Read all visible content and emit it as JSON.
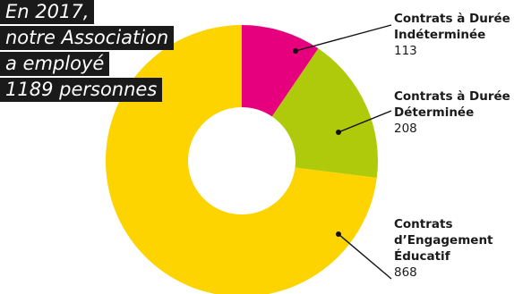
{
  "title_lines": [
    "En 2017,",
    "notre Association",
    "a employé",
    "1189 personnes"
  ],
  "chart_data": {
    "type": "pie",
    "donut": true,
    "slices": [
      {
        "label_lines": [
          "Contrats à Durée",
          "Indéterminée"
        ],
        "value": 113,
        "value_label": "113",
        "color": "#e6007e"
      },
      {
        "label_lines": [
          "Contrats à Durée",
          "Déterminée"
        ],
        "value": 208,
        "value_label": "208",
        "color": "#afca0b"
      },
      {
        "label_lines": [
          "Contrats",
          "d’Engagement",
          "Éducatif"
        ],
        "value": 868,
        "value_label": "868",
        "color": "#fdd400"
      }
    ],
    "total": 1189,
    "start": "12 o'clock",
    "direction": "clockwise"
  }
}
